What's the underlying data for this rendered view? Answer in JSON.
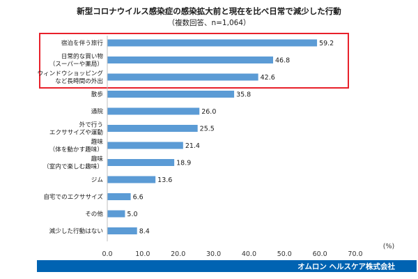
{
  "chart_data": {
    "type": "bar",
    "orientation": "horizontal",
    "title": "新型コロナウイルス感染症の感染拡大前と現在を比べ日常で減少した行動",
    "subtitle": "（複数回答、n=1,064）",
    "categories": [
      [
        "宿泊を伴う旅行"
      ],
      [
        "日常的な買い物",
        "（スーパーや薬局）"
      ],
      [
        "ウィンドウショッピング",
        "など長時間の外出"
      ],
      [
        "散歩"
      ],
      [
        "通院"
      ],
      [
        "外で行う",
        "エクササイズや運動"
      ],
      [
        "趣味",
        "（体を動かす趣味）"
      ],
      [
        "趣味",
        "（室内で楽しむ趣味）"
      ],
      [
        "ジム"
      ],
      [
        "自宅でのエクササイズ"
      ],
      [
        "その他"
      ],
      [
        "減少した行動はない"
      ]
    ],
    "values": [
      59.2,
      46.8,
      42.6,
      35.8,
      26.0,
      25.5,
      21.4,
      18.9,
      13.6,
      6.6,
      5.0,
      8.4
    ],
    "value_labels": [
      "59.2",
      "46.8",
      "42.6",
      "35.8",
      "26.0",
      "25.5",
      "21.4",
      "18.9",
      "13.6",
      "6.6",
      "5.0",
      "8.4"
    ],
    "xlim": [
      0,
      70
    ],
    "xticks": [
      "0.0",
      "10.0",
      "20.0",
      "30.0",
      "40.0",
      "50.0",
      "60.0",
      "70.0"
    ],
    "unit_label": "(%)",
    "highlighted_categories": 3,
    "grid": false,
    "colors": {
      "bar": "#5b9bd5",
      "highlight_border": "#e8202a",
      "footer_band": "#0063b2"
    }
  },
  "footer": {
    "text": "オムロン ヘルスケア株式会社"
  }
}
